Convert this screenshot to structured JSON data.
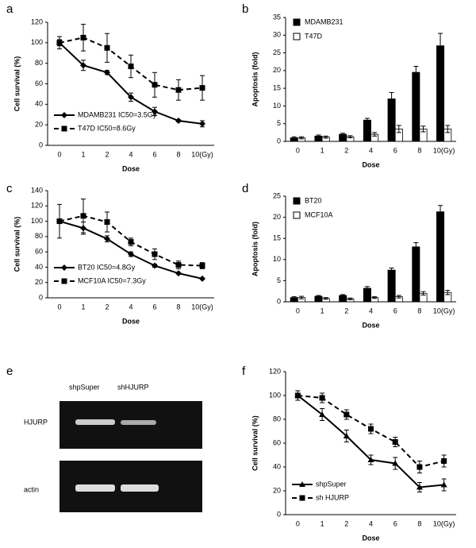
{
  "chart_data": [
    {
      "type": "line",
      "label": "a",
      "xlabel": "Dose",
      "ylabel": "Cell survival (%)",
      "categories": [
        "0",
        "1",
        "2",
        "4",
        "6",
        "8",
        "10(Gy)"
      ],
      "ylim": [
        0,
        120
      ],
      "yticks": [
        0,
        20,
        40,
        60,
        80,
        100,
        120
      ],
      "legend": "lower left",
      "series": [
        {
          "name": "MDAMB231 IC50=3.5Gy",
          "color": "#000000",
          "marker": "diamond",
          "dash": false,
          "values": [
            100,
            78,
            71,
            47,
            33,
            24,
            21
          ],
          "errors": [
            3,
            5,
            2,
            4,
            4,
            1,
            3
          ]
        },
        {
          "name": "T47D IC50=8.6Gy",
          "color": "#000000",
          "marker": "square",
          "dash": true,
          "values": [
            100,
            105,
            95,
            77,
            59,
            54,
            56
          ],
          "errors": [
            6,
            13,
            14,
            11,
            12,
            10,
            12
          ]
        }
      ]
    },
    {
      "type": "bar",
      "label": "b",
      "xlabel": "Dose",
      "ylabel": "Apoptosis (fold)",
      "categories": [
        "0",
        "1",
        "2",
        "4",
        "6",
        "8",
        "10(Gy)"
      ],
      "ylim": [
        0,
        35
      ],
      "yticks": [
        0,
        5,
        10,
        15,
        20,
        25,
        30,
        35
      ],
      "legend": "upper left",
      "series": [
        {
          "name": "MDAMB231",
          "color": "#000000",
          "values": [
            1,
            1.5,
            2,
            6,
            12,
            19.5,
            27
          ],
          "errors": [
            0.3,
            0.3,
            0.3,
            0.5,
            1.8,
            1.7,
            3.5
          ]
        },
        {
          "name": "T47D",
          "color": "#ffffff",
          "values": [
            1,
            1.2,
            1.3,
            2,
            3.5,
            3.5,
            3.5
          ],
          "errors": [
            0.3,
            0.3,
            0.3,
            0.5,
            1,
            0.8,
            1
          ]
        }
      ]
    },
    {
      "type": "line",
      "label": "c",
      "xlabel": "Dose",
      "ylabel": "Cell survival (%)",
      "categories": [
        "0",
        "1",
        "2",
        "4",
        "6",
        "8",
        "10(Gy)"
      ],
      "ylim": [
        0,
        140
      ],
      "yticks": [
        0,
        20,
        40,
        60,
        80,
        100,
        120,
        140
      ],
      "legend": "lower left",
      "series": [
        {
          "name": "BT20 IC50=4.8Gy",
          "color": "#000000",
          "marker": "diamond",
          "dash": false,
          "values": [
            100,
            91,
            77,
            57,
            42,
            32,
            25
          ],
          "errors": [
            2,
            8,
            4,
            3,
            2,
            1,
            1
          ]
        },
        {
          "name": "MCF10A IC50=7.3Gy",
          "color": "#000000",
          "marker": "square",
          "dash": true,
          "values": [
            100,
            107,
            99,
            73,
            57,
            43,
            42
          ],
          "errors": [
            22,
            22,
            13,
            5,
            7,
            5,
            4
          ]
        }
      ]
    },
    {
      "type": "bar",
      "label": "d",
      "xlabel": "Dose",
      "ylabel": "Apoptosis (fold)",
      "categories": [
        "0",
        "1",
        "2",
        "4",
        "6",
        "8",
        "10(Gy)"
      ],
      "ylim": [
        0,
        25
      ],
      "yticks": [
        0,
        5,
        10,
        15,
        20,
        25
      ],
      "legend": "upper left",
      "series": [
        {
          "name": "BT20",
          "color": "#000000",
          "values": [
            1,
            1.3,
            1.5,
            3.2,
            7.5,
            13,
            21.3
          ],
          "errors": [
            0.2,
            0.2,
            0.2,
            0.4,
            0.5,
            1,
            1.5
          ]
        },
        {
          "name": "MCF10A",
          "color": "#ffffff",
          "values": [
            1,
            0.8,
            0.7,
            1,
            1.2,
            2,
            2.2
          ],
          "errors": [
            0.3,
            0.2,
            0.2,
            0.2,
            0.3,
            0.4,
            0.5
          ]
        }
      ]
    },
    {
      "type": "line",
      "label": "f",
      "xlabel": "Dose",
      "ylabel": "Cell survival (%)",
      "categories": [
        "0",
        "1",
        "2",
        "4",
        "6",
        "8",
        "10(Gy)"
      ],
      "ylim": [
        0,
        120
      ],
      "yticks": [
        0,
        20,
        40,
        60,
        80,
        100,
        120
      ],
      "legend": "lower left",
      "series": [
        {
          "name": "shpSuper",
          "color": "#000000",
          "marker": "triangle",
          "dash": false,
          "values": [
            100,
            84,
            66,
            46,
            43,
            23,
            25
          ],
          "errors": [
            4,
            5,
            5,
            4,
            5,
            4,
            5
          ]
        },
        {
          "name": "sh HJURP",
          "color": "#000000",
          "marker": "square",
          "dash": true,
          "values": [
            100,
            98,
            84,
            72,
            61,
            40,
            45
          ],
          "errors": [
            4,
            4,
            4,
            4,
            4,
            5,
            5
          ]
        }
      ]
    }
  ],
  "gel": {
    "label": "e",
    "lanes": [
      "shpSuper",
      "shHJURP"
    ],
    "bands": [
      "HJURP",
      "actin"
    ]
  }
}
